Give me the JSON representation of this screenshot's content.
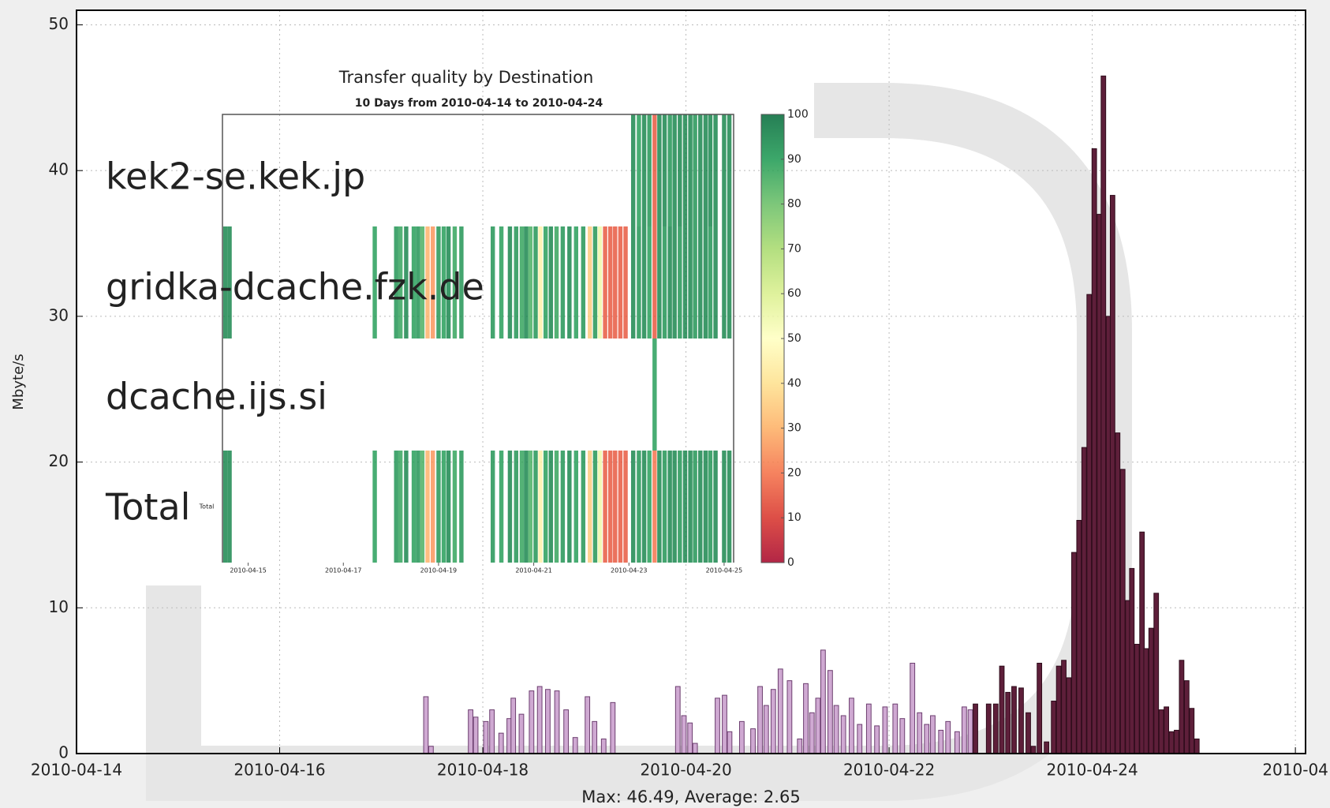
{
  "chart_data": [
    {
      "type": "bar",
      "ylabel": "Mbyte/s",
      "footer": "Max: 46.49, Average: 2.65",
      "grid": true,
      "xlim": [
        0,
        12.1
      ],
      "xticks": [
        {
          "value": 0,
          "label": "2010-04-14"
        },
        {
          "value": 2,
          "label": "2010-04-16"
        },
        {
          "value": 4,
          "label": "2010-04-18"
        },
        {
          "value": 6,
          "label": "2010-04-20"
        },
        {
          "value": 8,
          "label": "2010-04-22"
        },
        {
          "value": 10,
          "label": "2010-04-24"
        },
        {
          "value": 12,
          "label": "2010-04"
        }
      ],
      "ylim": [
        0,
        51
      ],
      "yticks": [
        0,
        10,
        20,
        30,
        40,
        50
      ],
      "series": [
        {
          "color": "#cfa9d2",
          "edge_color": "#6d3f70",
          "x": [
            3.44,
            3.49,
            3.88,
            3.93,
            4.03,
            4.09,
            4.18,
            4.26,
            4.3,
            4.38,
            4.48,
            4.56,
            4.64,
            4.73,
            4.82,
            4.91,
            5.03,
            5.1,
            5.19,
            5.28,
            5.92,
            5.98,
            6.04,
            6.09,
            6.31,
            6.38,
            6.43,
            6.55,
            6.66,
            6.73,
            6.79,
            6.86,
            6.93,
            7.02,
            7.12,
            7.18,
            7.24,
            7.3,
            7.35,
            7.42,
            7.48,
            7.55,
            7.63,
            7.71,
            7.8,
            7.88,
            7.96,
            8.06,
            8.13,
            8.23,
            8.3,
            8.37,
            8.43,
            8.51,
            8.58,
            8.67,
            8.74,
            8.8
          ],
          "values": [
            3.9,
            0.5,
            3.0,
            2.5,
            2.2,
            3.0,
            1.4,
            2.4,
            3.8,
            2.7,
            4.3,
            4.6,
            4.4,
            4.3,
            3.0,
            1.1,
            3.9,
            2.2,
            1.0,
            3.5,
            4.6,
            2.6,
            2.1,
            0.7,
            3.8,
            4.0,
            1.5,
            2.2,
            1.7,
            4.6,
            3.3,
            4.4,
            5.8,
            5.0,
            1.0,
            4.8,
            2.8,
            3.8,
            7.1,
            5.7,
            3.3,
            2.6,
            3.8,
            2.0,
            3.4,
            1.9,
            3.2,
            3.4,
            2.4,
            6.2,
            2.8,
            2.0,
            2.6,
            1.6,
            2.2,
            1.5,
            3.2,
            3.0
          ]
        },
        {
          "color": "#5e1f3a",
          "edge_color": "#2e0c1b",
          "x": [
            8.85,
            8.98,
            9.05,
            9.11,
            9.17,
            9.23,
            9.3,
            9.37,
            9.42,
            9.48,
            9.55,
            9.62,
            9.67,
            9.72,
            9.77,
            9.82,
            9.87,
            9.92,
            9.97,
            10.02,
            10.07,
            10.11,
            10.16,
            10.2,
            10.25,
            10.3,
            10.35,
            10.39,
            10.44,
            10.49,
            10.53,
            10.58,
            10.63,
            10.68,
            10.73,
            10.78,
            10.83,
            10.88,
            10.93,
            10.98,
            11.03
          ],
          "values": [
            3.4,
            3.4,
            3.4,
            6.0,
            4.2,
            4.6,
            4.5,
            2.8,
            0.5,
            6.2,
            0.8,
            3.6,
            6.0,
            6.4,
            5.2,
            13.8,
            16,
            21,
            31.5,
            41.5,
            37,
            46.49,
            30,
            38.3,
            22,
            19.5,
            10.5,
            12.7,
            7.5,
            15.2,
            7.2,
            8.6,
            11,
            3,
            3.2,
            1.5,
            1.6,
            6.4,
            5,
            3.1,
            1
          ]
        }
      ]
    },
    {
      "type": "heatmap",
      "title": "Transfer quality by Destination",
      "subtitle": "10 Days from 2010-04-14 to 2010-04-24",
      "xlim": [
        0.46,
        11.2
      ],
      "xticks": [
        {
          "value": 1,
          "label": "2010-04-15"
        },
        {
          "value": 3,
          "label": "2010-04-17"
        },
        {
          "value": 5,
          "label": "2010-04-19"
        },
        {
          "value": 7,
          "label": "2010-04-21"
        },
        {
          "value": 9,
          "label": "2010-04-23"
        },
        {
          "value": 11,
          "label": "2010-04-25"
        }
      ],
      "clim": [
        0,
        100
      ],
      "cticks": [
        0,
        10,
        20,
        30,
        40,
        50,
        60,
        70,
        80,
        90,
        100
      ],
      "series": [
        {
          "name": "kek2-se.kek.jp",
          "x": [
            9.09,
            9.21,
            9.32,
            9.43,
            9.54,
            9.64,
            9.75,
            9.86,
            9.96,
            10.07,
            10.18,
            10.29,
            10.39,
            10.5,
            10.61,
            10.71,
            10.82,
            11.0,
            11.11
          ],
          "values": [
            95,
            90,
            95,
            92,
            15,
            95,
            95,
            92,
            95,
            95,
            95,
            95,
            92,
            95,
            95,
            95,
            95,
            95,
            95
          ]
        },
        {
          "name": "gridka-dcache.fzk.de",
          "x": [
            0.52,
            0.61,
            3.66,
            4.11,
            4.2,
            4.32,
            4.48,
            4.57,
            4.66,
            4.77,
            4.88,
            5.0,
            5.11,
            5.21,
            5.34,
            5.48,
            6.14,
            6.32,
            6.5,
            6.63,
            6.75,
            6.84,
            6.93,
            7.04,
            7.14,
            7.25,
            7.36,
            7.48,
            7.61,
            7.75,
            7.89,
            8.04,
            8.18,
            8.29,
            8.39,
            8.5,
            8.61,
            8.71,
            8.82,
            8.93,
            9.09,
            9.21,
            9.32,
            9.43,
            9.54,
            9.64,
            9.75,
            9.86,
            9.96,
            10.07,
            10.18,
            10.29,
            10.39,
            10.5,
            10.61,
            10.71,
            10.82,
            11.0,
            11.11
          ],
          "values": [
            95,
            95,
            90,
            92,
            88,
            95,
            90,
            92,
            85,
            30,
            25,
            92,
            90,
            95,
            88,
            92,
            92,
            90,
            95,
            92,
            88,
            95,
            85,
            92,
            45,
            90,
            95,
            88,
            92,
            95,
            90,
            92,
            35,
            92,
            55,
            15,
            15,
            15,
            15,
            15,
            95,
            92,
            95,
            90,
            15,
            95,
            92,
            95,
            95,
            92,
            95,
            95,
            92,
            95,
            95,
            92,
            95,
            95,
            95
          ]
        },
        {
          "name": "dcache.ijs.si",
          "x": [
            9.54
          ],
          "values": [
            90
          ]
        },
        {
          "name": "Total",
          "x": [
            0.52,
            0.61,
            3.66,
            4.11,
            4.2,
            4.32,
            4.48,
            4.57,
            4.66,
            4.77,
            4.88,
            5.0,
            5.11,
            5.21,
            5.34,
            5.48,
            6.14,
            6.32,
            6.5,
            6.63,
            6.75,
            6.84,
            6.93,
            7.04,
            7.14,
            7.25,
            7.36,
            7.48,
            7.61,
            7.75,
            7.89,
            8.04,
            8.18,
            8.29,
            8.39,
            8.5,
            8.61,
            8.71,
            8.82,
            8.93,
            9.09,
            9.21,
            9.32,
            9.43,
            9.54,
            9.64,
            9.75,
            9.86,
            9.96,
            10.07,
            10.18,
            10.29,
            10.39,
            10.5,
            10.61,
            10.71,
            10.82,
            11.0,
            11.11
          ],
          "values": [
            95,
            95,
            90,
            92,
            88,
            95,
            90,
            92,
            85,
            30,
            25,
            92,
            90,
            95,
            88,
            92,
            92,
            90,
            95,
            92,
            88,
            95,
            85,
            92,
            45,
            90,
            95,
            88,
            92,
            95,
            90,
            92,
            35,
            92,
            55,
            15,
            15,
            15,
            15,
            15,
            95,
            92,
            95,
            90,
            20,
            95,
            92,
            95,
            95,
            92,
            95,
            95,
            92,
            95,
            95,
            92,
            95,
            95,
            95
          ]
        }
      ]
    }
  ]
}
